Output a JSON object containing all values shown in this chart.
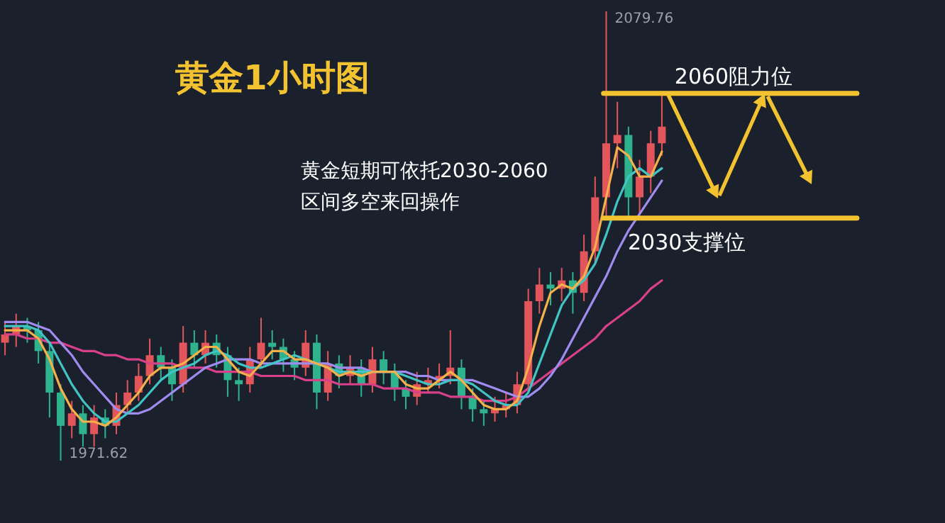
{
  "chart_data": {
    "type": "candlestick",
    "title": "黄金1小时图",
    "categories": [
      null,
      null,
      null,
      null,
      null,
      null,
      null,
      null,
      null,
      null,
      null,
      null,
      null,
      null,
      null,
      null,
      null,
      null,
      null,
      null,
      null,
      null,
      null,
      null,
      null,
      null,
      null,
      null,
      null,
      null,
      null,
      null,
      null,
      null,
      null,
      null,
      null,
      null,
      null,
      null,
      null,
      null,
      null,
      null,
      null,
      null,
      null,
      null,
      null,
      null,
      null,
      null,
      null,
      null,
      null,
      null,
      null,
      null,
      null,
      null
    ],
    "ohlc": [
      [
        2000,
        2005,
        1997,
        2002
      ],
      [
        2002,
        2007,
        1999,
        2004
      ],
      [
        2004,
        2006,
        2000,
        2003
      ],
      [
        2003,
        2005,
        1995,
        1998
      ],
      [
        1998,
        2000,
        1982,
        1988
      ],
      [
        1988,
        1990,
        1971.62,
        1980
      ],
      [
        1980,
        1986,
        1977,
        1983
      ],
      [
        1983,
        1985,
        1975,
        1978
      ],
      [
        1978,
        1985,
        1975,
        1982
      ],
      [
        1982,
        1984,
        1977,
        1980
      ],
      [
        1980,
        1988,
        1978,
        1985
      ],
      [
        1985,
        1991,
        1983,
        1988
      ],
      [
        1988,
        1995,
        1986,
        1992
      ],
      [
        1992,
        2001,
        1990,
        1997
      ],
      [
        1997,
        1999,
        1991,
        1994
      ],
      [
        1994,
        1996,
        1986,
        1990
      ],
      [
        1990,
        2004,
        1988,
        2000
      ],
      [
        2000,
        2003,
        1994,
        1997
      ],
      [
        1997,
        2003,
        1995,
        2000
      ],
      [
        2000,
        2002,
        1994,
        1997
      ],
      [
        1997,
        1999,
        1987,
        1991
      ],
      [
        1991,
        1994,
        1986,
        1990
      ],
      [
        1990,
        1999,
        1988,
        1996
      ],
      [
        1996,
        2006,
        1994,
        2000
      ],
      [
        2000,
        2003,
        1996,
        1999
      ],
      [
        1999,
        2001,
        1993,
        1996
      ],
      [
        1996,
        1998,
        1991,
        1994
      ],
      [
        1994,
        2003,
        1992,
        2000
      ],
      [
        2000,
        2002,
        1984,
        1988
      ],
      [
        1988,
        1998,
        1986,
        1995
      ],
      [
        1995,
        1997,
        1989,
        1992
      ],
      [
        1992,
        1997,
        1990,
        1994
      ],
      [
        1994,
        1996,
        1987,
        1990
      ],
      [
        1990,
        1999,
        1988,
        1996
      ],
      [
        1996,
        1998,
        1990,
        1993
      ],
      [
        1993,
        1995,
        1986,
        1989
      ],
      [
        1989,
        1991,
        1984,
        1987
      ],
      [
        1987,
        1993,
        1985,
        1990
      ],
      [
        1990,
        1994,
        1988,
        1991
      ],
      [
        1991,
        1995,
        1989,
        1992
      ],
      [
        1992,
        2003,
        1990,
        1994
      ],
      [
        1994,
        1996,
        1984,
        1987
      ],
      [
        1987,
        1989,
        1981,
        1984
      ],
      [
        1984,
        1986,
        1980,
        1983
      ],
      [
        1983,
        1987,
        1981,
        1984
      ],
      [
        1984,
        1988,
        1982,
        1985
      ],
      [
        1985,
        1993,
        1983,
        1990
      ],
      [
        1990,
        2013,
        1988,
        2010
      ],
      [
        2010,
        2018,
        2007,
        2014
      ],
      [
        2014,
        2017,
        2009,
        2013
      ],
      [
        2013,
        2018,
        2010,
        2015
      ],
      [
        2015,
        2017,
        2007,
        2012
      ],
      [
        2012,
        2026,
        2010,
        2022
      ],
      [
        2022,
        2040,
        2019,
        2035
      ],
      [
        2035,
        2079.76,
        2030,
        2048
      ],
      [
        2048,
        2058,
        2042,
        2050
      ],
      [
        2050,
        2052,
        2030,
        2035
      ],
      [
        2035,
        2044,
        2031,
        2040
      ],
      [
        2040,
        2051,
        2036,
        2048
      ],
      [
        2048,
        2060,
        2045,
        2052
      ]
    ],
    "colors": [
      "#e2555a",
      "#e2555a",
      "#2fb38e",
      "#2fb38e",
      "#2fb38e",
      "#2fb38e",
      "#e2555a",
      "#2fb38e",
      "#e2555a",
      "#2fb38e",
      "#e2555a",
      "#e2555a",
      "#e2555a",
      "#e2555a",
      "#2fb38e",
      "#2fb38e",
      "#e2555a",
      "#2fb38e",
      "#e2555a",
      "#2fb38e",
      "#2fb38e",
      "#2fb38e",
      "#e2555a",
      "#e2555a",
      "#2fb38e",
      "#2fb38e",
      "#2fb38e",
      "#e2555a",
      "#2fb38e",
      "#e2555a",
      "#2fb38e",
      "#e2555a",
      "#2fb38e",
      "#e2555a",
      "#2fb38e",
      "#2fb38e",
      "#2fb38e",
      "#e2555a",
      "#e2555a",
      "#e2555a",
      "#e2555a",
      "#2fb38e",
      "#2fb38e",
      "#2fb38e",
      "#e2555a",
      "#e2555a",
      "#e2555a",
      "#e2555a",
      "#e2555a",
      "#2fb38e",
      "#e2555a",
      "#2fb38e",
      "#e2555a",
      "#e2555a",
      "#e2555a",
      "#e2555a",
      "#2fb38e",
      "#e2555a",
      "#e2555a",
      "#e2555a"
    ],
    "series": [
      {
        "type": "line",
        "color": "#d8418a",
        "values": [
          2002,
          2002,
          2001,
          2001,
          2000,
          2000,
          1999,
          1998,
          1998,
          1997,
          1997,
          1996,
          1996,
          1995,
          1995,
          1995,
          1994,
          1994,
          1994,
          1993,
          1993,
          1993,
          1993,
          1992,
          1992,
          1992,
          1992,
          1991,
          1991,
          1991,
          1990,
          1990,
          1990,
          1990,
          1989,
          1989,
          1989,
          1988,
          1988,
          1988,
          1987,
          1987,
          1987,
          1986,
          1986,
          1986,
          1987,
          1989,
          1991,
          1993,
          1995,
          1997,
          1999,
          2001,
          2004,
          2006,
          2008,
          2010,
          2013,
          2015
        ]
      },
      {
        "type": "line",
        "color": "#a08cf0",
        "values": [
          2005,
          2005,
          2005,
          2004,
          2003,
          2000,
          1997,
          1993,
          1990,
          1987,
          1984,
          1983,
          1983,
          1984,
          1986,
          1988,
          1990,
          1992,
          1994,
          1995,
          1996,
          1996,
          1996,
          1995,
          1995,
          1995,
          1995,
          1995,
          1995,
          1995,
          1994,
          1994,
          1994,
          1993,
          1993,
          1993,
          1993,
          1992,
          1992,
          1991,
          1991,
          1991,
          1991,
          1990,
          1989,
          1988,
          1987,
          1987,
          1989,
          1992,
          1996,
          2001,
          2006,
          2011,
          2016,
          2022,
          2027,
          2031,
          2035,
          2039
        ]
      },
      {
        "type": "line",
        "color": "#40c4c4",
        "values": [
          2004,
          2004,
          2004,
          2003,
          2000,
          1995,
          1990,
          1986,
          1983,
          1981,
          1981,
          1983,
          1985,
          1988,
          1991,
          1993,
          1994,
          1995,
          1997,
          1998,
          1997,
          1995,
          1994,
          1994,
          1995,
          1996,
          1997,
          1996,
          1995,
          1994,
          1993,
          1993,
          1993,
          1993,
          1993,
          1993,
          1992,
          1991,
          1990,
          1990,
          1991,
          1991,
          1990,
          1988,
          1986,
          1985,
          1985,
          1988,
          1995,
          2002,
          2009,
          2013,
          2015,
          2019,
          2026,
          2034,
          2040,
          2042,
          2040,
          2042
        ]
      },
      {
        "type": "line",
        "color": "#f5b04a",
        "values": [
          2003,
          2003,
          2003,
          2001,
          1996,
          1989,
          1984,
          1981,
          1981,
          1980,
          1982,
          1985,
          1988,
          1992,
          1994,
          1994,
          1995,
          1997,
          1999,
          1999,
          1996,
          1993,
          1992,
          1995,
          1998,
          1998,
          1996,
          1996,
          1995,
          1994,
          1992,
          1993,
          1992,
          1993,
          1993,
          1993,
          1990,
          1989,
          1989,
          1991,
          1993,
          1991,
          1988,
          1985,
          1984,
          1984,
          1986,
          1994,
          2004,
          2012,
          2014,
          2013,
          2016,
          2023,
          2035,
          2047,
          2045,
          2040,
          2040,
          2046
        ]
      }
    ],
    "tick_labels": false,
    "ref_lines": [
      {
        "axis": "y",
        "value": 2060,
        "label": "2060阻力位",
        "color": "#f2c230"
      },
      {
        "axis": "y",
        "value": 2030,
        "label": "2030支撑位",
        "color": "#f2c230"
      }
    ],
    "annotations": [
      "黄金短期可依托2030-2060\n区间多空来回操作",
      "2079.76",
      "1971.62"
    ]
  }
}
